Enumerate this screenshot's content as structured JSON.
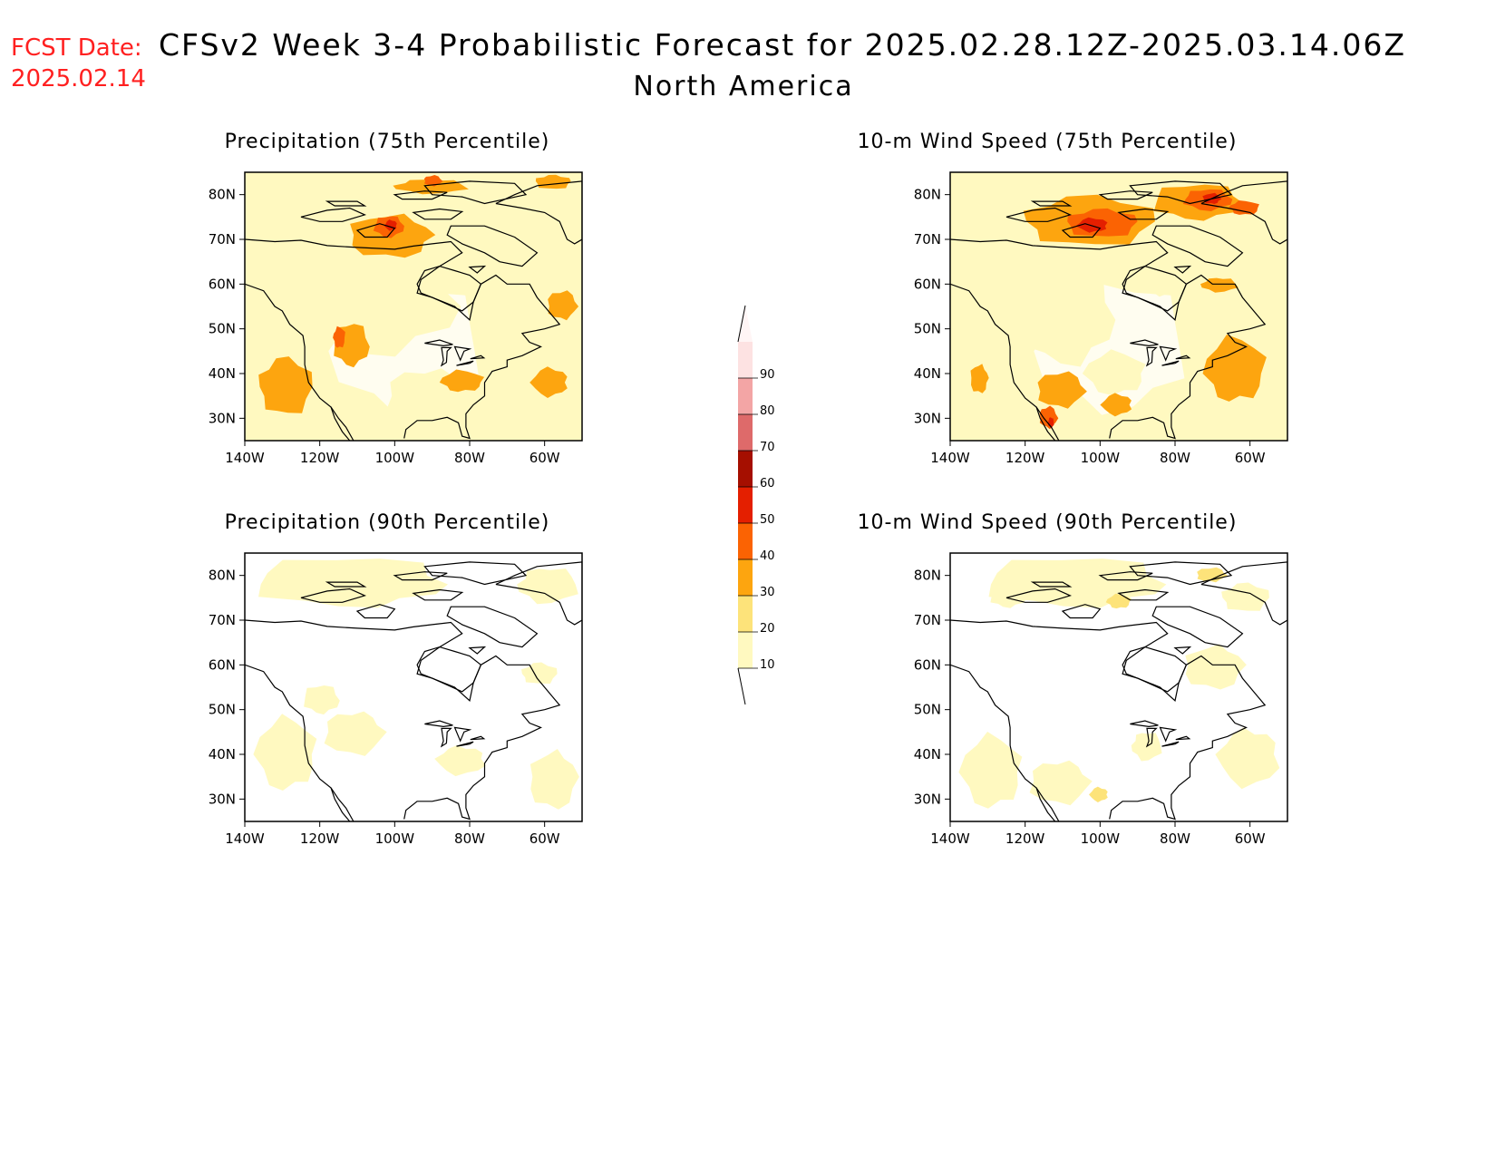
{
  "header": {
    "fcst_label": "FCST Date:",
    "fcst_date": "2025.02.14",
    "title": "CFSv2 Week 3-4 Probabilistic Forecast for 2025.02.28.12Z-2025.03.14.06Z",
    "region": "North America"
  },
  "panels": [
    {
      "id": "precip75",
      "title": "Precipitation (75th Percentile)"
    },
    {
      "id": "wind75",
      "title": "10-m Wind Speed (75th Percentile)"
    },
    {
      "id": "precip90",
      "title": "Precipitation (90th Percentile)"
    },
    {
      "id": "wind90",
      "title": "10-m Wind Speed (90th Percentile)"
    }
  ],
  "axes": {
    "lat_labels": [
      "80N",
      "70N",
      "60N",
      "50N",
      "40N",
      "30N"
    ],
    "lon_labels": [
      "140W",
      "120W",
      "100W",
      "80W",
      "60W"
    ]
  },
  "colorbar": {
    "levels": [
      "10",
      "20",
      "30",
      "40",
      "50",
      "60",
      "70",
      "80",
      "90"
    ],
    "colors": [
      "#fff9c0",
      "#fde37a",
      "#fda50f",
      "#fb6303",
      "#e41f00",
      "#a50f00",
      "#de6a6a",
      "#f3a5a5",
      "#fde2e2"
    ]
  }
}
